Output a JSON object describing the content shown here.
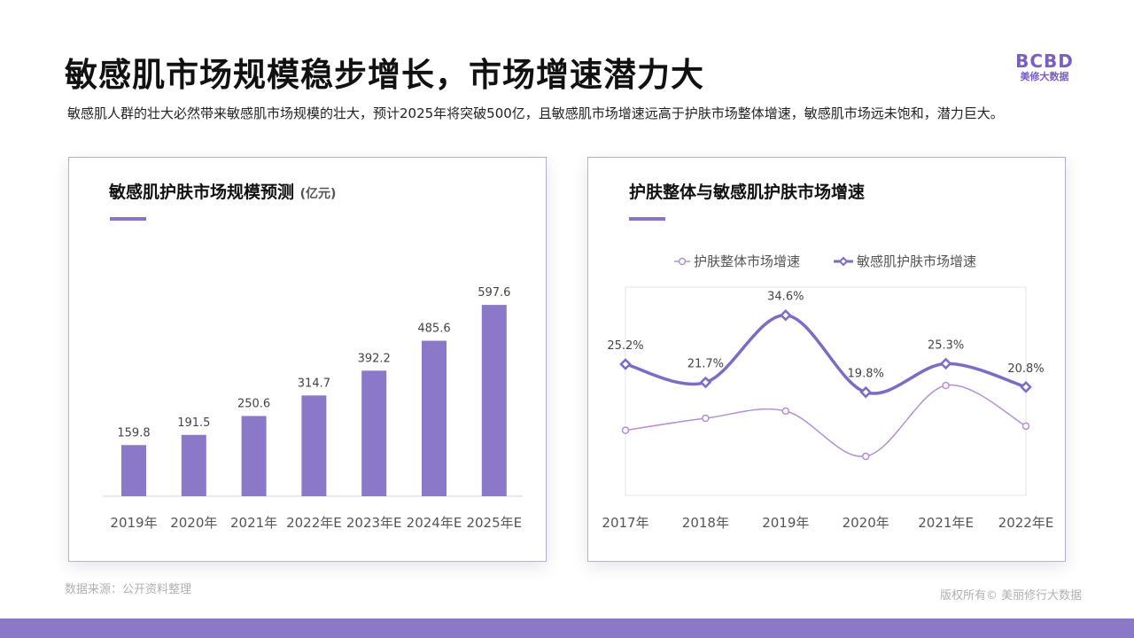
{
  "header": {
    "title": "敏感肌市场规模稳步增长，市场增速潜力大",
    "subtitle": "敏感肌人群的壮大必然带来敏感肌市场规模的壮大，预计2025年将突破500亿，且敏感肌市场增速远高于护肤市场整体增速，敏感肌市场远未饱和，潜力巨大。"
  },
  "logo": {
    "mark": "BCBD",
    "text": "美修大数据"
  },
  "colors": {
    "accent": "#8b74c8",
    "bar": "#8b78c8",
    "line_light": "#b48fd6",
    "line_dark": "#7e6bc4",
    "footer": "#8b78c9"
  },
  "left_panel": {
    "title": "敏感肌护肤市场规模预测",
    "unit": "(亿元)"
  },
  "right_panel": {
    "title": "护肤整体与敏感肌护肤市场增速"
  },
  "chart_data": [
    {
      "type": "bar",
      "title": "敏感肌护肤市场规模预测 (亿元)",
      "categories": [
        "2019年",
        "2020年",
        "2021年",
        "2022年E",
        "2023年E",
        "2024年E",
        "2025年E"
      ],
      "values": [
        159.8,
        191.5,
        250.6,
        314.7,
        392.2,
        485.6,
        597.6
      ],
      "data_labels": [
        "159.8",
        "191.5",
        "250.6",
        "314.7",
        "392.2",
        "485.6",
        "597.6"
      ],
      "ylim": [
        0,
        620
      ],
      "grid": false
    },
    {
      "type": "line",
      "title": "护肤整体与敏感肌护肤市场增速",
      "categories": [
        "2017年",
        "2018年",
        "2019年",
        "2020年",
        "2021年E",
        "2022年E"
      ],
      "legend_position": "top",
      "series": [
        {
          "name": "护肤整体市场增速",
          "values": [
            12.5,
            14.8,
            16.2,
            7.5,
            21.1,
            13.3
          ],
          "marker": "circle"
        },
        {
          "name": "敏感肌护肤市场增速",
          "values": [
            25.2,
            21.7,
            34.6,
            19.8,
            25.3,
            20.8
          ],
          "marker": "diamond",
          "data_labels": [
            "25.2%",
            "21.7%",
            "34.6%",
            "19.8%",
            "25.3%",
            "20.8%"
          ]
        }
      ],
      "ylim": [
        0,
        40
      ],
      "grid": false
    }
  ],
  "footer": {
    "source": "数据来源：公开资料整理",
    "copyright": "版权所有© 美丽修行大数据"
  }
}
